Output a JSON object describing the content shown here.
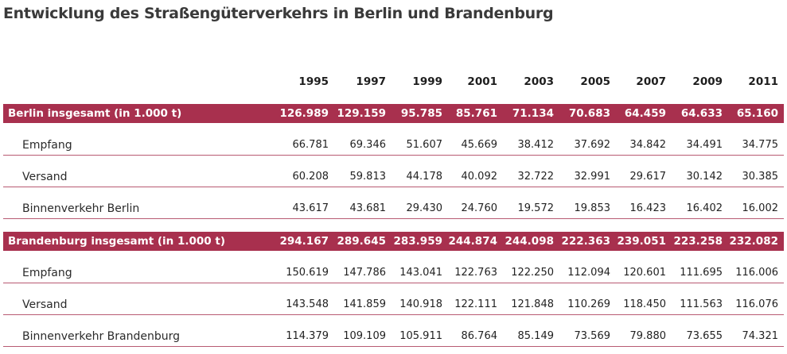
{
  "title": "Entwicklung des Straßengüterverkehrs in Berlin und Brandenburg",
  "years": [
    "1995",
    "1997",
    "1999",
    "2001",
    "2003",
    "2005",
    "2007",
    "2009",
    "2011"
  ],
  "rows": [
    {
      "kind": "total",
      "label": "Berlin insgesamt (in 1.000 t)",
      "values": [
        "126.989",
        "129.159",
        "95.785",
        "85.761",
        "71.134",
        "70.683",
        "64.459",
        "64.633",
        "65.160"
      ]
    },
    {
      "kind": "sub",
      "label": "Empfang",
      "values": [
        "66.781",
        "69.346",
        "51.607",
        "45.669",
        "38.412",
        "37.692",
        "34.842",
        "34.491",
        "34.775"
      ]
    },
    {
      "kind": "sub",
      "label": "Versand",
      "values": [
        "60.208",
        "59.813",
        "44.178",
        "40.092",
        "32.722",
        "32.991",
        "29.617",
        "30.142",
        "30.385"
      ]
    },
    {
      "kind": "sub",
      "label": "Binnenverkehr Berlin",
      "values": [
        "43.617",
        "43.681",
        "29.430",
        "24.760",
        "19.572",
        "19.853",
        "16.423",
        "16.402",
        "16.002"
      ]
    },
    {
      "kind": "total",
      "label": "Brandenburg insgesamt (in 1.000 t)",
      "values": [
        "294.167",
        "289.645",
        "283.959",
        "244.874",
        "244.098",
        "222.363",
        "239.051",
        "223.258",
        "232.082"
      ]
    },
    {
      "kind": "sub",
      "label": "Empfang",
      "values": [
        "150.619",
        "147.786",
        "143.041",
        "122.763",
        "122.250",
        "112.094",
        "120.601",
        "111.695",
        "116.006"
      ]
    },
    {
      "kind": "sub",
      "label": "Versand",
      "values": [
        "143.548",
        "141.859",
        "140.918",
        "122.111",
        "121.848",
        "110.269",
        "118.450",
        "111.563",
        "116.076"
      ]
    },
    {
      "kind": "sub",
      "label": "Binnenverkehr Brandenburg",
      "values": [
        "114.379",
        "109.109",
        "105.911",
        "86.764",
        "85.149",
        "73.569",
        "79.880",
        "73.655",
        "74.321"
      ]
    }
  ],
  "colors": {
    "accent": "#a8304e",
    "rule": "#b85a72"
  }
}
